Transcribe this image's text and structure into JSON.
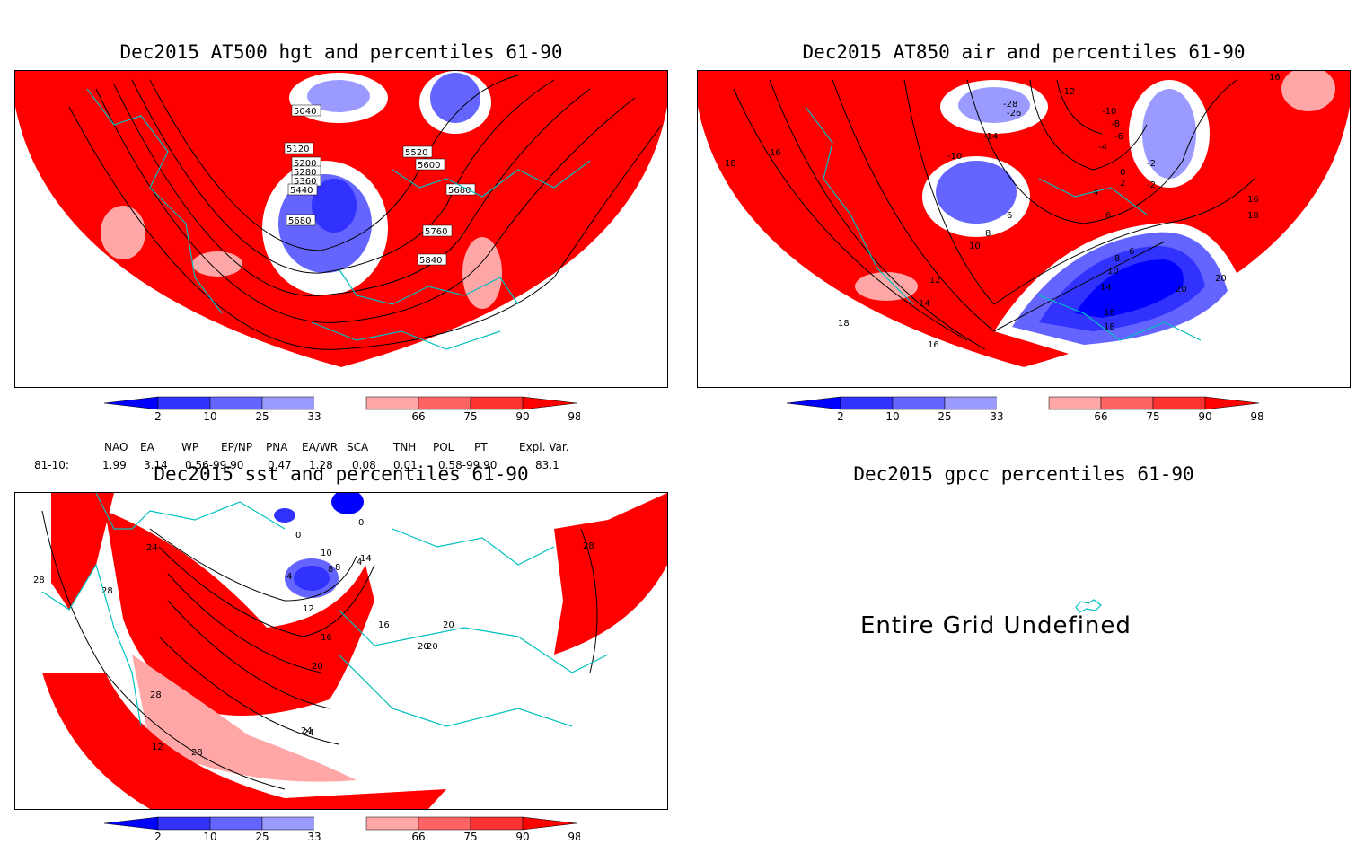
{
  "panels": {
    "hgt": {
      "title": "Dec2015 AT500 hgt and percentiles 61-90",
      "contour_labels": [
        "5040",
        "5120",
        "5200",
        "5280",
        "5360",
        "5440",
        "5520",
        "5600",
        "5680",
        "5680",
        "5760",
        "5840"
      ]
    },
    "air": {
      "title": "Dec2015 AT850 air and percentiles 61-90",
      "contour_labels": [
        "-12",
        "-10",
        "-8",
        "-6",
        "-4",
        "-2",
        "0",
        "2",
        "4",
        "6",
        "6",
        "8",
        "10",
        "12",
        "14",
        "16",
        "18",
        "20",
        "-14",
        "-26",
        "-28",
        "16",
        "18",
        "16",
        "16",
        "18",
        "14",
        "16",
        "18",
        "20",
        "10",
        "8",
        "6",
        "-10",
        "-2"
      ]
    },
    "sst": {
      "title": "Dec2015 sst and percentiles 61-90",
      "contour_labels": [
        "0",
        "4",
        "8",
        "12",
        "16",
        "20",
        "24",
        "28",
        "28",
        "28",
        "28",
        "28",
        "24",
        "20",
        "16",
        "12",
        "8",
        "4",
        "0",
        "10",
        "14",
        "20",
        "20",
        "24"
      ]
    },
    "gpcc": {
      "title": "Dec2015 gpcc percentiles 61-90",
      "message": "Entire Grid Undefined"
    }
  },
  "colorbar": {
    "labels": [
      "2",
      "10",
      "25",
      "33",
      "66",
      "75",
      "90",
      "98"
    ],
    "colors": [
      "#0000ff",
      "#3232ff",
      "#6464ff",
      "#9a9aff",
      "#ffffff",
      "#ffa6a6",
      "#ff6464",
      "#ff3232",
      "#ff0000"
    ]
  },
  "stats": {
    "headers": [
      "NAO",
      "EA",
      "WP",
      "EP/NP",
      "PNA",
      "EA/WR",
      "SCA",
      "TNH",
      "POL",
      "PT",
      "Expl. Var."
    ],
    "row_label": "81-10:",
    "values": [
      "1.99",
      "3.14",
      "0.56-99.90",
      "0.47",
      "1.28",
      "0.08",
      "0.01",
      "0.58-99.90",
      "83.1"
    ]
  }
}
